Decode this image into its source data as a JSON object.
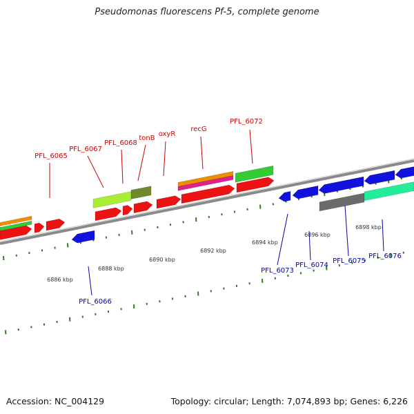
{
  "title": "Pseudomonas fluorescens Pf-5, complete genome",
  "footer": {
    "accession": "Accession: NC_004129",
    "summary": "Topology: circular; Length: 7,074,893 bp; Genes: 6,226"
  },
  "colors": {
    "backbone": "#8a8a8a",
    "forward_label": "#cc0000",
    "reverse_label": "#0000aa",
    "tick": "#2e7d1e",
    "coord_text": "#333333"
  },
  "coordinate_labels": [
    "6886 kbp",
    "6888 kbp",
    "6890 kbp",
    "6892 kbp",
    "6894 kbp",
    "6896 kbp",
    "6898 kbp"
  ],
  "forward_genes": [
    {
      "label": "PFL_6065"
    },
    {
      "label": "PFL_6067"
    },
    {
      "label": "PFL_6068"
    },
    {
      "label": "tonB"
    },
    {
      "label": "oxyR"
    },
    {
      "label": "recG"
    },
    {
      "label": "PFL_6072"
    }
  ],
  "reverse_genes": [
    {
      "label": "PFL_6066"
    },
    {
      "label": "PFL_6073"
    },
    {
      "label": "PFL_6074"
    },
    {
      "label": "PFL_6075"
    },
    {
      "label": "PFL_6076"
    }
  ],
  "feature_colors": {
    "cds_forward": "#ee1111",
    "cds_reverse": "#1111dd",
    "orange_feature": "#f08c00",
    "magenta_feature": "#e0208c",
    "green_feature": "#33cc33",
    "lime_feature": "#aaee33",
    "olive_feature": "#6e8a2a",
    "gray_feature": "#6b6b6b",
    "teal_feature": "#22ee99"
  }
}
